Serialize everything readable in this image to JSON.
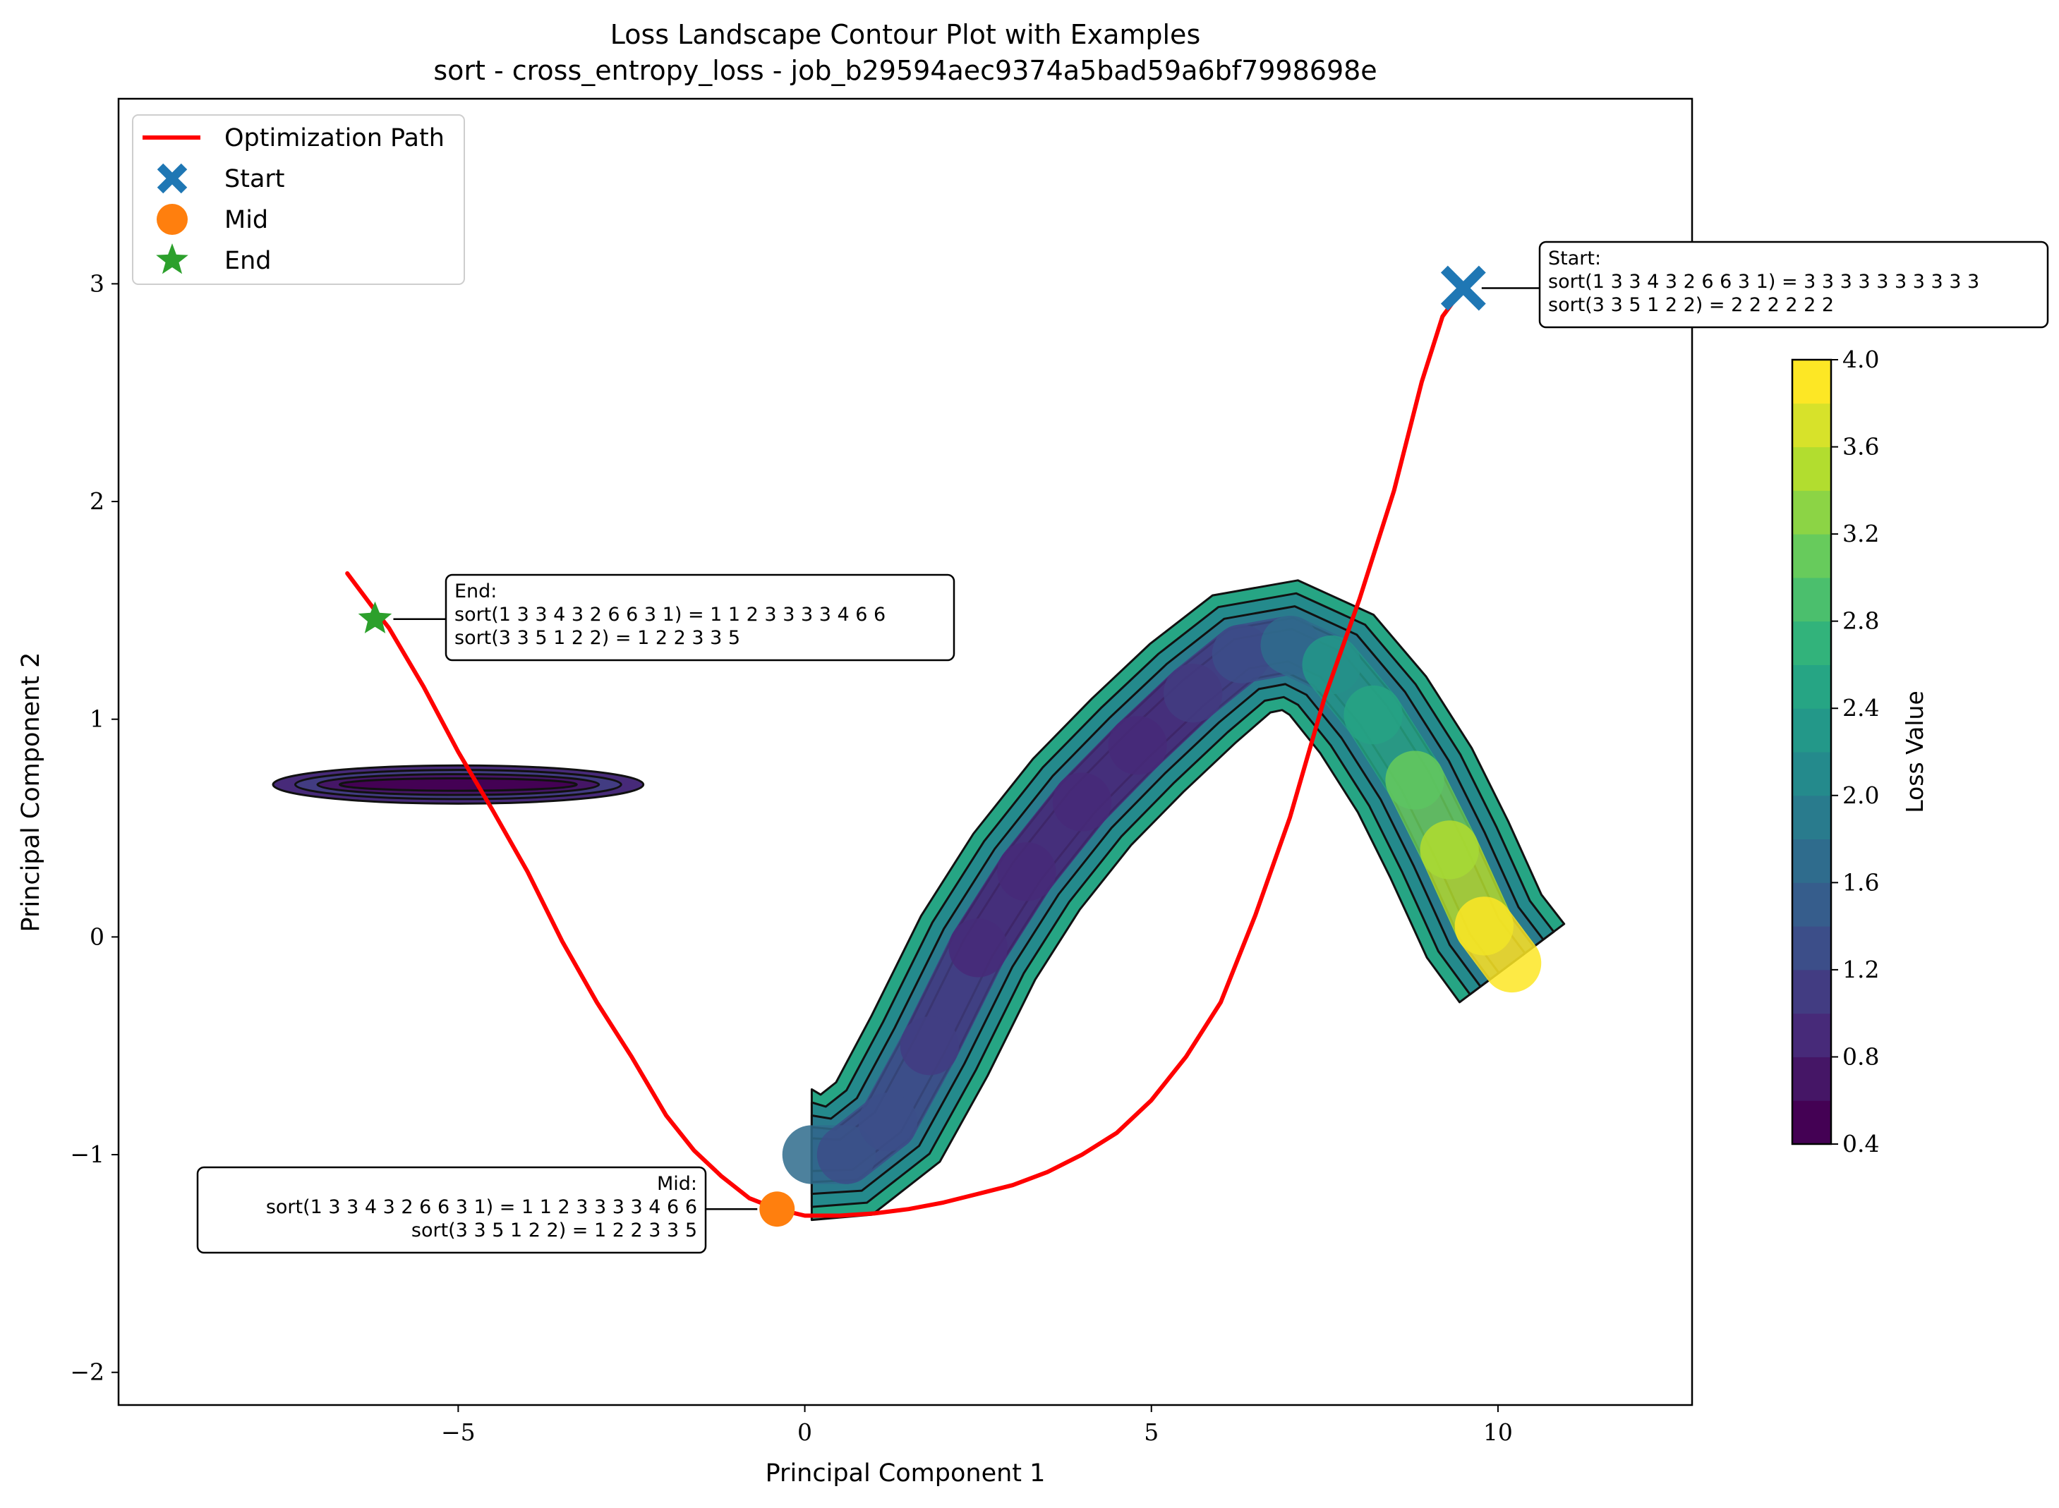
{
  "chart_data": {
    "type": "contour",
    "title": "Loss Landscape Contour Plot with Examples",
    "subtitle": "sort - cross_entropy_loss - job_b29594aec9374a5bad59a6bf7998698e",
    "xlabel": "Principal Component 1",
    "ylabel": "Principal Component 2",
    "xlim": [
      -9.9,
      12.8
    ],
    "ylim": [
      -2.15,
      3.85
    ],
    "xticks": [
      -5,
      0,
      5,
      10
    ],
    "yticks": [
      -2,
      -1,
      0,
      1,
      2,
      3
    ],
    "grid": false,
    "legend_position": "top-left",
    "legend": [
      {
        "label": "Optimization Path",
        "marker": "line",
        "color": "#ff0000"
      },
      {
        "label": "Start",
        "marker": "x",
        "color": "#1f77b4"
      },
      {
        "label": "Mid",
        "marker": "circle",
        "color": "#ff7f0e"
      },
      {
        "label": "End",
        "marker": "star",
        "color": "#2ca02c"
      }
    ],
    "optimization_path": {
      "color": "#ff0000",
      "points": [
        [
          9.5,
          2.98
        ],
        [
          9.2,
          2.85
        ],
        [
          8.9,
          2.55
        ],
        [
          8.5,
          2.05
        ],
        [
          8.0,
          1.55
        ],
        [
          7.5,
          1.1
        ],
        [
          7.0,
          0.55
        ],
        [
          6.5,
          0.1
        ],
        [
          6.0,
          -0.3
        ],
        [
          5.5,
          -0.55
        ],
        [
          5.0,
          -0.75
        ],
        [
          4.5,
          -0.9
        ],
        [
          4.0,
          -1.0
        ],
        [
          3.5,
          -1.08
        ],
        [
          3.0,
          -1.14
        ],
        [
          2.5,
          -1.18
        ],
        [
          2.0,
          -1.22
        ],
        [
          1.5,
          -1.25
        ],
        [
          1.0,
          -1.27
        ],
        [
          0.5,
          -1.28
        ],
        [
          0.0,
          -1.28
        ],
        [
          -0.4,
          -1.25
        ],
        [
          -0.8,
          -1.2
        ],
        [
          -1.2,
          -1.1
        ],
        [
          -1.6,
          -0.98
        ],
        [
          -2.0,
          -0.82
        ],
        [
          -2.5,
          -0.55
        ],
        [
          -3.0,
          -0.3
        ],
        [
          -3.5,
          -0.02
        ],
        [
          -4.0,
          0.3
        ],
        [
          -4.5,
          0.58
        ],
        [
          -5.0,
          0.85
        ],
        [
          -5.5,
          1.15
        ],
        [
          -6.0,
          1.42
        ],
        [
          -6.2,
          1.5
        ],
        [
          -6.6,
          1.67
        ]
      ]
    },
    "markers": {
      "start": {
        "x": 9.5,
        "y": 2.98,
        "color": "#1f77b4"
      },
      "mid": {
        "x": -0.4,
        "y": -1.25,
        "color": "#ff7f0e"
      },
      "end": {
        "x": -6.2,
        "y": 1.46,
        "color": "#2ca02c"
      }
    },
    "annotations": {
      "start": {
        "lines": [
          "Start:",
          "sort(1 3 3 4 3 2 6 6 3 1) = 3 3 3 3 3 3 3 3 3 3",
          "sort(3 3 5 1 2 2) = 2 2 2 2 2 2"
        ]
      },
      "end": {
        "lines": [
          "End:",
          "sort(1 3 3 4 3 2 6 6 3 1) = 1 1 2 3 3 3 3 4 6 6",
          "sort(3 3 5 1 2 2) = 1 2 2 3 3 5"
        ]
      },
      "mid": {
        "lines": [
          "Mid:",
          "sort(1 3 3 4 3 2 6 6 3 1) = 1 1 2 3 3 3 3 4 6 6",
          "sort(3 3 5 1 2 2) = 1 2 2 3 3 5"
        ]
      }
    },
    "colorbar": {
      "label": "Loss Value",
      "range": [
        0.4,
        4.0
      ],
      "ticks": [
        0.4,
        0.8,
        1.2,
        1.6,
        2.0,
        2.4,
        2.8,
        3.2,
        3.6,
        4.0
      ],
      "levels": 18,
      "colormap": [
        "#440154",
        "#472d7b",
        "#3b528b",
        "#2c728e",
        "#21918c",
        "#28ae80",
        "#5ec962",
        "#addc30",
        "#fde725"
      ]
    },
    "regions": [
      {
        "name": "left-strip",
        "center": [
          -5.0,
          0.7
        ],
        "length": 2.0,
        "angle_deg": -62,
        "widths": [
          0.55,
          0.42,
          0.3,
          0.18
        ],
        "values": [
          0.9,
          1.1,
          0.75,
          0.6
        ]
      },
      {
        "name": "main-valley",
        "spine": [
          [
            0.1,
            -1.0
          ],
          [
            0.6,
            -1.0
          ],
          [
            1.2,
            -0.85
          ],
          [
            1.8,
            -0.5
          ],
          [
            2.5,
            -0.05
          ],
          [
            3.2,
            0.3
          ],
          [
            4.0,
            0.62
          ],
          [
            4.8,
            0.88
          ],
          [
            5.6,
            1.12
          ],
          [
            6.3,
            1.3
          ],
          [
            7.0,
            1.34
          ],
          [
            7.6,
            1.25
          ],
          [
            8.2,
            1.02
          ],
          [
            8.8,
            0.72
          ],
          [
            9.3,
            0.4
          ],
          [
            9.8,
            0.05
          ],
          [
            10.2,
            -0.12
          ]
        ],
        "spine_values": [
          1.9,
          1.4,
          1.1,
          1.3,
          0.95,
          0.9,
          0.85,
          0.8,
          0.9,
          1.2,
          1.6,
          2.0,
          2.4,
          2.8,
          3.2,
          3.6,
          4.0
        ],
        "half_width": 0.3
      }
    ]
  }
}
